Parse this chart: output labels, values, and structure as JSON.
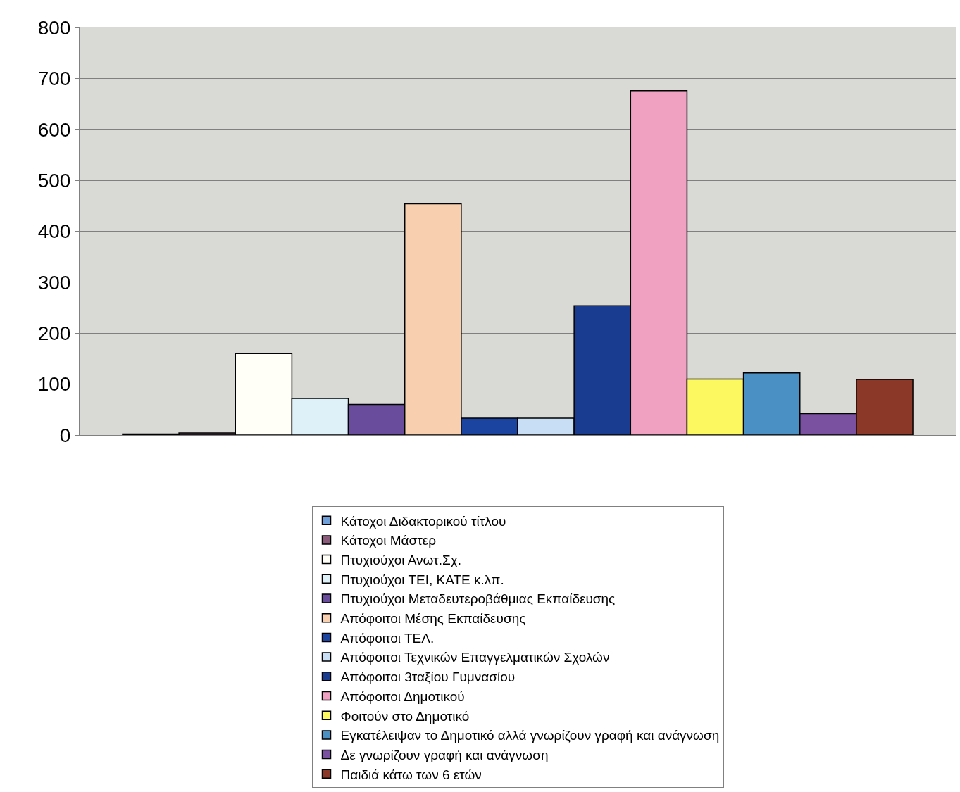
{
  "chart_data": {
    "type": "bar",
    "categories": [
      null
    ],
    "ylim": [
      0,
      800
    ],
    "yticks": [
      0,
      100,
      200,
      300,
      400,
      500,
      600,
      700,
      800
    ],
    "grid": "y",
    "legend": "bottom",
    "series": [
      {
        "name": "Κάτοχοι Διδακτορικού τίτλου",
        "color": "#6f9fd8",
        "values": [
          2
        ]
      },
      {
        "name": "Κάτοχοι Μάστερ",
        "color": "#8a5a7a",
        "values": [
          4
        ]
      },
      {
        "name": "Πτυχιούχοι Ανωτ.Σχ.",
        "color": "#fffff8",
        "values": [
          160
        ]
      },
      {
        "name": "Πτυχιούχοι ΤΕΙ, ΚΑΤΕ κ.λπ.",
        "color": "#def0f8",
        "values": [
          72
        ]
      },
      {
        "name": "Πτυχιούχοι Μεταδευτεροβάθμιας Εκπαίδευσης",
        "color": "#6a4c9c",
        "values": [
          60
        ]
      },
      {
        "name": "Απόφοιτοι Μέσης Εκπαίδευσης",
        "color": "#f8d0b0",
        "values": [
          454
        ]
      },
      {
        "name": "Απόφοιτοι ΤΕΛ.",
        "color": "#1a44a0",
        "values": [
          33
        ]
      },
      {
        "name": "Απόφοιτοι Τεχνικών Επαγγελματικών Σχολών",
        "color": "#c8def4",
        "values": [
          33
        ]
      },
      {
        "name": "Απόφοιτοι 3ταξίου Γυμνασίου",
        "color": "#1a3c90",
        "values": [
          254
        ]
      },
      {
        "name": "Απόφοιτοι Δημοτικού",
        "color": "#f0a0c0",
        "values": [
          676
        ]
      },
      {
        "name": "Φοιτούν στο Δημοτικό",
        "color": "#fcf860",
        "values": [
          110
        ]
      },
      {
        "name": "Εγκατέλειψαν το Δημοτικό αλλά γνωρίζουν γραφή και ανάγνωση",
        "color": "#4a90c4",
        "values": [
          122
        ]
      },
      {
        "name": "Δε γνωρίζουν γραφή και ανάγνωση",
        "color": "#7a50a0",
        "values": [
          42
        ]
      },
      {
        "name": "Παιδιά κάτω των 6 ετών",
        "color": "#8c3828",
        "values": [
          109
        ]
      }
    ]
  }
}
